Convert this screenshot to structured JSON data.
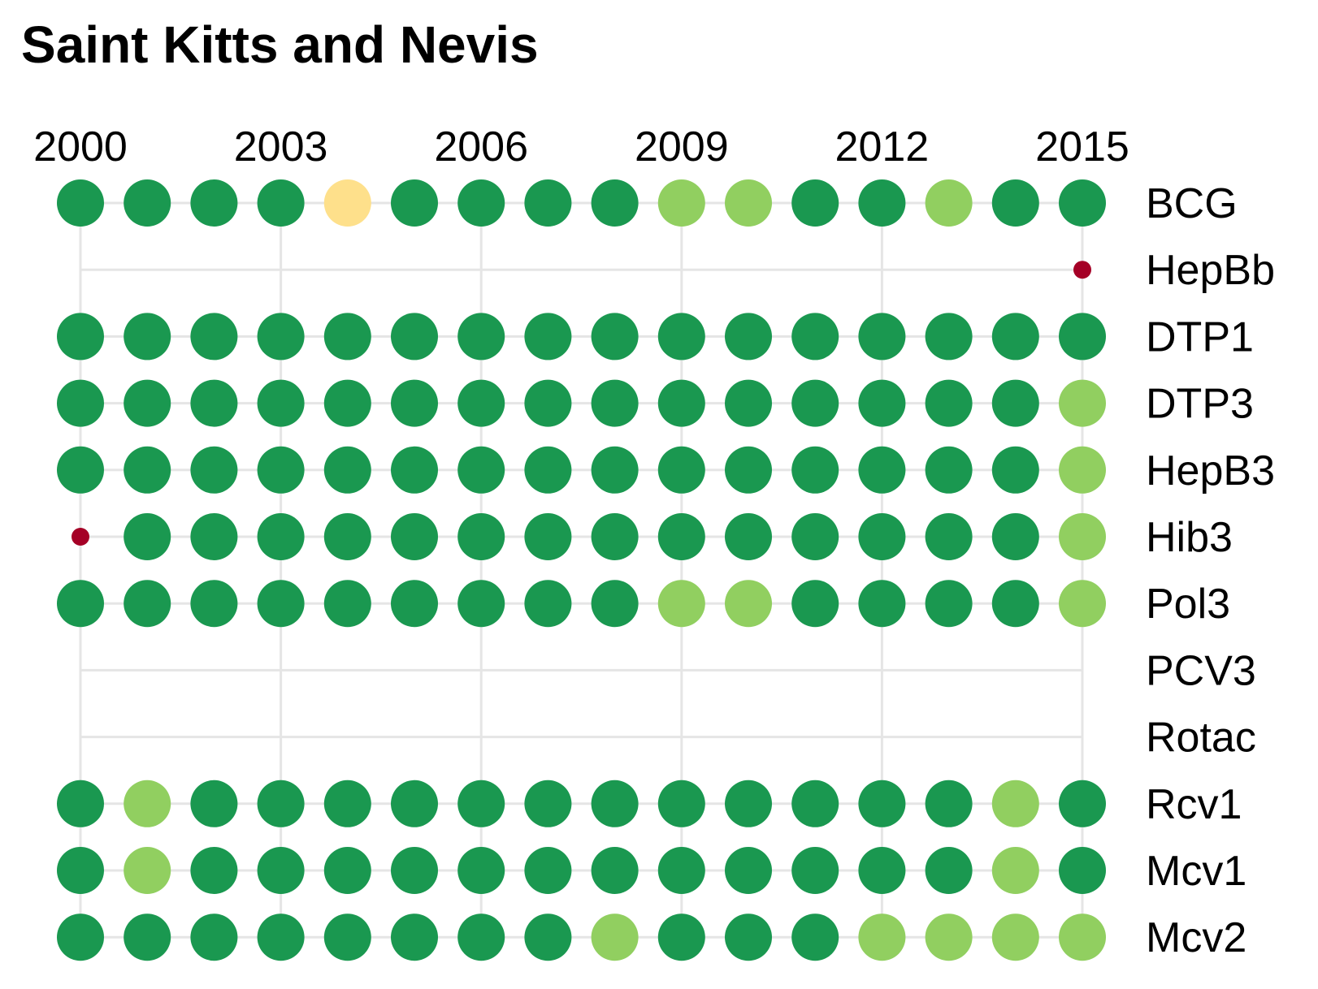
{
  "chart_data": {
    "type": "dot-matrix",
    "title": "Saint Kitts and Nevis",
    "x": [
      2000,
      2001,
      2002,
      2003,
      2004,
      2005,
      2006,
      2007,
      2008,
      2009,
      2010,
      2011,
      2012,
      2013,
      2014,
      2015
    ],
    "x_tick_labels": [
      "2000",
      "2003",
      "2006",
      "2009",
      "2012",
      "2015"
    ],
    "x_tick_values": [
      2000,
      2003,
      2006,
      2009,
      2012,
      2015
    ],
    "x_tick_position": "top",
    "categories": [
      "BCG",
      "HepBb",
      "DTP1",
      "DTP3",
      "HepB3",
      "Hib3",
      "Pol3",
      "PCV3",
      "Rotac",
      "Rcv1",
      "Mcv1",
      "Mcv2"
    ],
    "category_label_position": "right",
    "grid": true,
    "color_scale": {
      "high": "#1a9850",
      "mid": "#91cf60",
      "low": "#fee08b",
      "very-low": "#a50026"
    },
    "series": [
      {
        "category": "BCG",
        "levels": [
          "high",
          "high",
          "high",
          "high",
          "low",
          "high",
          "high",
          "high",
          "high",
          "mid",
          "mid",
          "high",
          "high",
          "mid",
          "high",
          "high"
        ]
      },
      {
        "category": "HepBb",
        "levels": [
          null,
          null,
          null,
          null,
          null,
          null,
          null,
          null,
          null,
          null,
          null,
          null,
          null,
          null,
          null,
          "very-low"
        ]
      },
      {
        "category": "DTP1",
        "levels": [
          "high",
          "high",
          "high",
          "high",
          "high",
          "high",
          "high",
          "high",
          "high",
          "high",
          "high",
          "high",
          "high",
          "high",
          "high",
          "high"
        ]
      },
      {
        "category": "DTP3",
        "levels": [
          "high",
          "high",
          "high",
          "high",
          "high",
          "high",
          "high",
          "high",
          "high",
          "high",
          "high",
          "high",
          "high",
          "high",
          "high",
          "mid"
        ]
      },
      {
        "category": "HepB3",
        "levels": [
          "high",
          "high",
          "high",
          "high",
          "high",
          "high",
          "high",
          "high",
          "high",
          "high",
          "high",
          "high",
          "high",
          "high",
          "high",
          "mid"
        ]
      },
      {
        "category": "Hib3",
        "levels": [
          "very-low",
          "high",
          "high",
          "high",
          "high",
          "high",
          "high",
          "high",
          "high",
          "high",
          "high",
          "high",
          "high",
          "high",
          "high",
          "mid"
        ]
      },
      {
        "category": "Pol3",
        "levels": [
          "high",
          "high",
          "high",
          "high",
          "high",
          "high",
          "high",
          "high",
          "high",
          "mid",
          "mid",
          "high",
          "high",
          "high",
          "high",
          "mid"
        ]
      },
      {
        "category": "PCV3",
        "levels": [
          null,
          null,
          null,
          null,
          null,
          null,
          null,
          null,
          null,
          null,
          null,
          null,
          null,
          null,
          null,
          null
        ]
      },
      {
        "category": "Rotac",
        "levels": [
          null,
          null,
          null,
          null,
          null,
          null,
          null,
          null,
          null,
          null,
          null,
          null,
          null,
          null,
          null,
          null
        ]
      },
      {
        "category": "Rcv1",
        "levels": [
          "high",
          "mid",
          "high",
          "high",
          "high",
          "high",
          "high",
          "high",
          "high",
          "high",
          "high",
          "high",
          "high",
          "high",
          "mid",
          "high"
        ]
      },
      {
        "category": "Mcv1",
        "levels": [
          "high",
          "mid",
          "high",
          "high",
          "high",
          "high",
          "high",
          "high",
          "high",
          "high",
          "high",
          "high",
          "high",
          "high",
          "mid",
          "high"
        ]
      },
      {
        "category": "Mcv2",
        "levels": [
          "high",
          "high",
          "high",
          "high",
          "high",
          "high",
          "high",
          "high",
          "mid",
          "high",
          "high",
          "high",
          "mid",
          "mid",
          "mid",
          "mid"
        ]
      }
    ]
  }
}
